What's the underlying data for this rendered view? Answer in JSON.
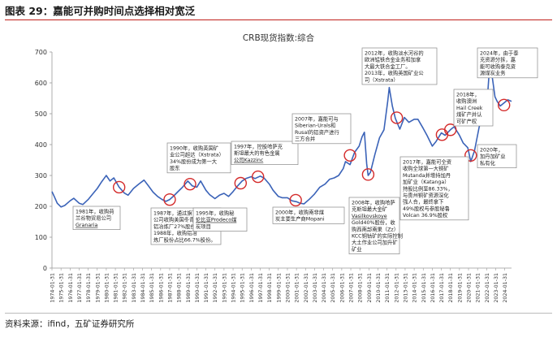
{
  "figure": {
    "title": "图表 29：嘉能可并购时间点选择相对宽泛",
    "source": "资料来源：ifind，五矿证券研究所"
  },
  "colors": {
    "line": "#3b63b8",
    "marker": "#d42a2a",
    "callout_border": "#888888",
    "rule": "#c0201c"
  },
  "chart_data": {
    "type": "line",
    "title": "CRB现货指数:综合",
    "xlabel": "",
    "ylabel": "",
    "ylim": [
      0,
      700
    ],
    "yticks": [
      0,
      100,
      200,
      300,
      400,
      500,
      600,
      700
    ],
    "xlim": [
      "1974-01-31",
      "2024-10-31"
    ],
    "xticks": [
      "1974-01-31",
      "1975-01-31",
      "1976-01-31",
      "1977-01-31",
      "1978-01-31",
      "1979-01-31",
      "1980-01-31",
      "1981-01-31",
      "1982-01-31",
      "1983-01-31",
      "1984-01-31",
      "1985-01-31",
      "1986-01-31",
      "1987-01-31",
      "1988-01-31",
      "1989-01-31",
      "1990-01-31",
      "1991-01-31",
      "1992-01-31",
      "1993-01-31",
      "1994-01-31",
      "1995-01-31",
      "1996-01-31",
      "1997-01-31",
      "1998-01-31",
      "1999-01-31",
      "2000-01-31",
      "2001-01-31",
      "2002-01-31",
      "2003-01-31",
      "2004-01-31",
      "2005-01-31",
      "2006-01-31",
      "2007-01-31",
      "2008-01-31",
      "2009-01-31",
      "2010-01-31",
      "2011-01-31",
      "2012-01-31",
      "2013-01-31",
      "2014-01-31",
      "2015-01-31",
      "2016-01-31",
      "2017-01-31",
      "2018-01-31",
      "2019-01-31",
      "2020-01-31",
      "2021-01-31",
      "2022-01-31",
      "2023-01-31",
      "2024-01-31"
    ],
    "grid": false,
    "series": [
      {
        "x": [
          "1974-01-31",
          "1974-04-30",
          "1974-08-31",
          "1975-01-31",
          "1975-06-30",
          "1976-01-31",
          "1976-06-30",
          "1977-01-31",
          "1977-06-30",
          "1978-01-31",
          "1978-07-31",
          "1979-01-31",
          "1979-07-31",
          "1980-01-31",
          "1980-06-30",
          "1980-11-30",
          "1981-06-30",
          "1982-01-31",
          "1982-06-30",
          "1983-01-31",
          "1983-08-31",
          "1984-03-31",
          "1984-09-30",
          "1985-03-31",
          "1985-09-30",
          "1986-03-31",
          "1986-08-31",
          "1987-01-31",
          "1987-06-30",
          "1988-01-31",
          "1988-06-30",
          "1989-01-31",
          "1989-07-31",
          "1990-01-31",
          "1990-06-30",
          "1991-01-31",
          "1991-06-30",
          "1992-01-31",
          "1992-07-31",
          "1993-01-31",
          "1993-07-31",
          "1994-01-31",
          "1994-07-31",
          "1995-01-31",
          "1995-06-30",
          "1996-01-31",
          "1996-06-30",
          "1997-01-31",
          "1997-06-30",
          "1998-01-31",
          "1998-06-30",
          "1999-01-31",
          "1999-06-30",
          "2000-01-31",
          "2000-07-31",
          "2001-01-31",
          "2001-06-30",
          "2001-11-30",
          "2002-06-30",
          "2003-01-31",
          "2003-08-31",
          "2004-03-31",
          "2004-09-30",
          "2005-03-31",
          "2005-09-30",
          "2006-03-31",
          "2006-06-30",
          "2006-12-31",
          "2007-06-30",
          "2007-12-31",
          "2008-04-30",
          "2008-07-31",
          "2008-10-31",
          "2008-12-31",
          "2009-03-31",
          "2009-09-30",
          "2010-03-31",
          "2010-09-30",
          "2011-02-28",
          "2011-04-30",
          "2011-08-31",
          "2011-12-31",
          "2012-06-30",
          "2012-12-31",
          "2013-06-30",
          "2014-01-31",
          "2014-06-30",
          "2015-01-31",
          "2015-06-30",
          "2016-01-31",
          "2016-06-30",
          "2017-01-31",
          "2017-06-30",
          "2018-01-31",
          "2018-06-30",
          "2019-01-31",
          "2019-06-30",
          "2019-12-31",
          "2020-04-30",
          "2020-09-30",
          "2021-03-31",
          "2021-09-30",
          "2022-02-28",
          "2022-04-30",
          "2022-07-31",
          "2022-12-31",
          "2023-03-31",
          "2023-07-31",
          "2023-12-31",
          "2024-05-31",
          "2024-10-31"
        ],
        "values": [
          248,
          232,
          210,
          198,
          203,
          218,
          226,
          210,
          206,
          222,
          240,
          258,
          280,
          300,
          282,
          292,
          262,
          243,
          236,
          258,
          272,
          285,
          266,
          246,
          232,
          222,
          216,
          222,
          233,
          250,
          262,
          282,
          266,
          262,
          282,
          252,
          238,
          225,
          236,
          242,
          232,
          248,
          266,
          282,
          290,
          296,
          290,
          298,
          292,
          272,
          252,
          232,
          228,
          228,
          218,
          215,
          210,
          208,
          223,
          240,
          262,
          272,
          288,
          292,
          300,
          322,
          345,
          335,
          375,
          395,
          425,
          440,
          338,
          300,
          310,
          368,
          422,
          448,
          540,
          585,
          525,
          485,
          450,
          488,
          472,
          482,
          482,
          452,
          430,
          395,
          410,
          438,
          430,
          448,
          458,
          430,
          405,
          390,
          345,
          380,
          455,
          520,
          548,
          620,
          645,
          555,
          540,
          525,
          535,
          545,
          540
        ]
      }
    ],
    "events": [
      {
        "x": "1981-06-30",
        "y": 262
      },
      {
        "x": "1987-01-31",
        "y": 222
      },
      {
        "x": "1989-04-30",
        "y": 272
      },
      {
        "x": "1994-11-30",
        "y": 275
      },
      {
        "x": "1996-10-31",
        "y": 296
      },
      {
        "x": "2000-12-31",
        "y": 220
      },
      {
        "x": "2006-12-31",
        "y": 365
      },
      {
        "x": "2008-12-31",
        "y": 303
      },
      {
        "x": "2012-02-28",
        "y": 487
      },
      {
        "x": "2017-02-28",
        "y": 432
      },
      {
        "x": "2018-01-31",
        "y": 448
      },
      {
        "x": "2020-04-30",
        "y": 365
      },
      {
        "x": "2023-12-31",
        "y": 528
      }
    ],
    "annotations": [
      {
        "lines": [
          "1981年，收购荷",
          "兰谷物贸易公司",
          "Granaria"
        ],
        "underline": [
          2
        ]
      },
      {
        "lines": [
          "1987年，通过旗下子",
          "公司收购美国冬青山",
          "铝冶炼厂27%股份。",
          "1988年，收购铝冶",
          "炼厂股份占比66.7%股份。"
        ],
        "underline": []
      },
      {
        "lines": [
          "1990年，收购英国矿",
          "业公司超达（Xstrata）",
          "34%股份成为第一大",
          "股东"
        ],
        "underline": []
      },
      {
        "lines": [
          "1995年，收购秘",
          "伦比亚Prodeco煤",
          "炭项目"
        ],
        "underline": [
          1
        ]
      },
      {
        "lines": [
          "1997年，控股哈萨克",
          "斯坦最大的有色金属",
          "公司Kazzinc"
        ],
        "underline": [
          2
        ]
      },
      {
        "lines": [
          "2000年，收购南非煤",
          "炭主要生产商Mopani"
        ],
        "underline": []
      },
      {
        "lines": [
          "2007年，嘉能可与",
          "Siberian-Urals和",
          "Rusal的铝资产进行",
          "三方合并"
        ],
        "underline": []
      },
      {
        "lines": [
          "2008年，收购哈萨",
          "克斯坦最大金矿",
          "Vasilkovskoye",
          "Gold40%股份，收",
          "购西南部南果（Zz）",
          "KCC铜钴矿的实际控制",
          "大土作业公司加升矿",
          "矿业"
        ],
        "underline": [
          2
        ]
      },
      {
        "lines": [
          "2012年，收购淡水河谷的",
          "欧洲锰铁合金业务和加拿",
          "大最大铁合金工厂。",
          "2013年，收购英国矿业公",
          "司（Xstrata）"
        ],
        "underline": []
      },
      {
        "lines": [
          "2017年，嘉能可全资",
          "收购全球第一大铜矿",
          "Mutanda并增持加丹",
          "加矿业（Katanga）",
          "持股比例至86.33%，",
          "与贵州铜矿资源深化",
          "强人合，最终拿下",
          "49%股权与参股秘鲁",
          "Volcan 36.9%股权"
        ],
        "underline": []
      },
      {
        "lines": [
          "2018年，",
          "收购澳洲",
          "Hail Creek",
          "煤矿产并认",
          "可矿产权"
        ],
        "underline": []
      },
      {
        "lines": [
          "2020年，",
          "加丹加矿业",
          "私有化"
        ],
        "underline": []
      },
      {
        "lines": [
          "2024年，由于泰",
          "克资源分拆，嘉",
          "能可收购泰克资",
          "源煤炭业务"
        ],
        "underline": []
      }
    ]
  }
}
